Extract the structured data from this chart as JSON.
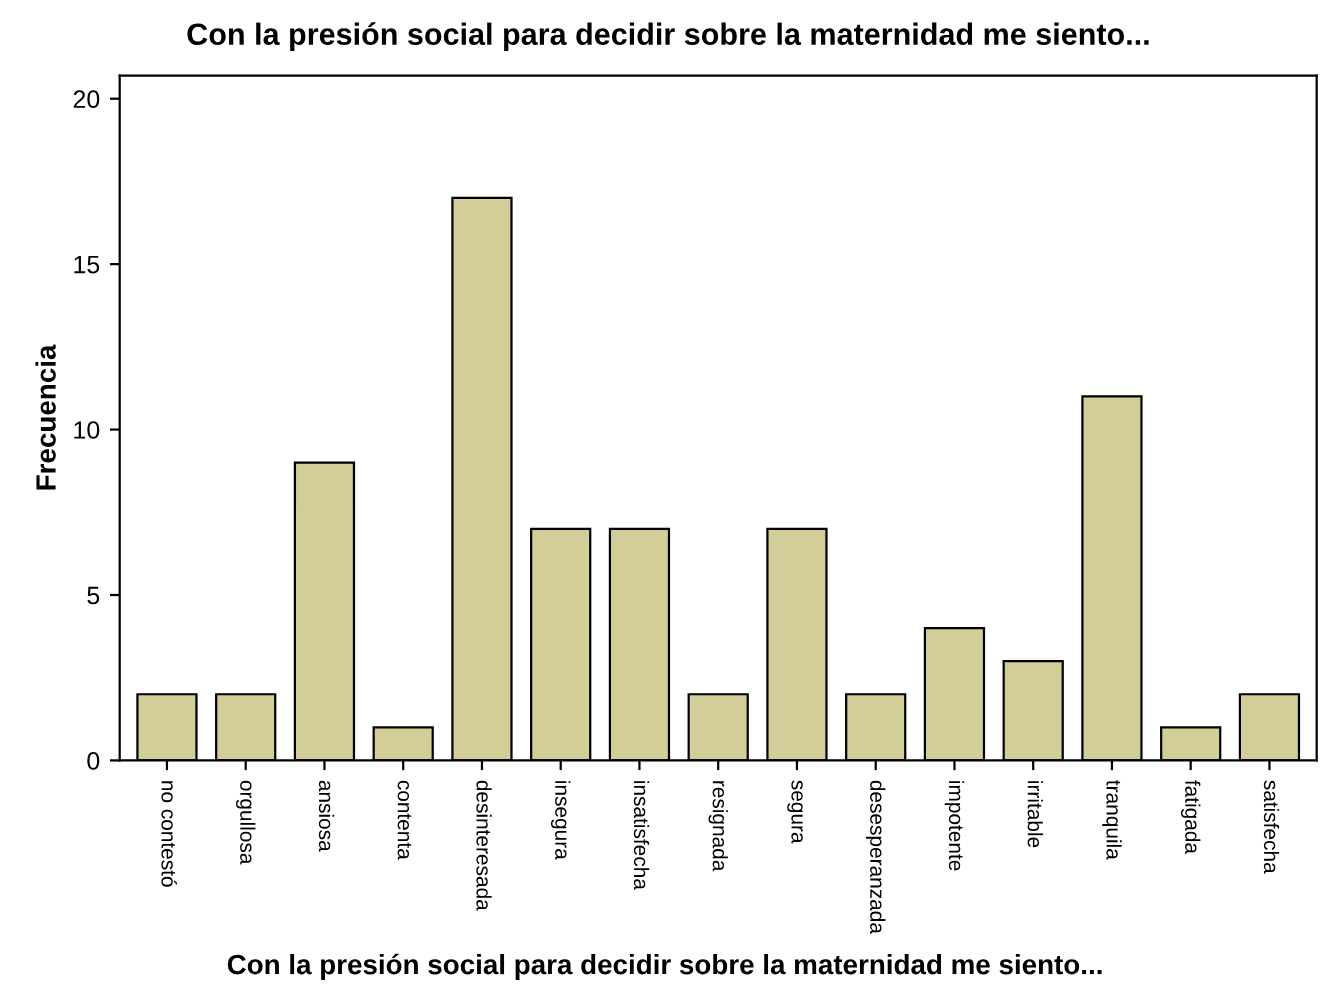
{
  "chart_data": {
    "type": "bar",
    "title": "Con la presión social para decidir sobre la maternidad me siento...",
    "xlabel": "Con la presión social para decidir sobre la maternidad me siento...",
    "ylabel": "Frecuencia",
    "categories": [
      "no contestó",
      "orgullosa",
      "ansiosa",
      "contenta",
      "desinteresada",
      "insegura",
      "insatisfecha",
      "resignada",
      "segura",
      "desesperanzada",
      "impotente",
      "irritable",
      "tranquila",
      "fatigada",
      "satisfecha"
    ],
    "values": [
      2,
      2,
      9,
      1,
      17,
      7,
      7,
      2,
      7,
      2,
      4,
      3,
      11,
      1,
      2
    ],
    "color": "#d3ce97",
    "ylim": [
      0,
      20.7
    ],
    "yticks": [
      0,
      5,
      10,
      15,
      20
    ],
    "grid": false
  }
}
